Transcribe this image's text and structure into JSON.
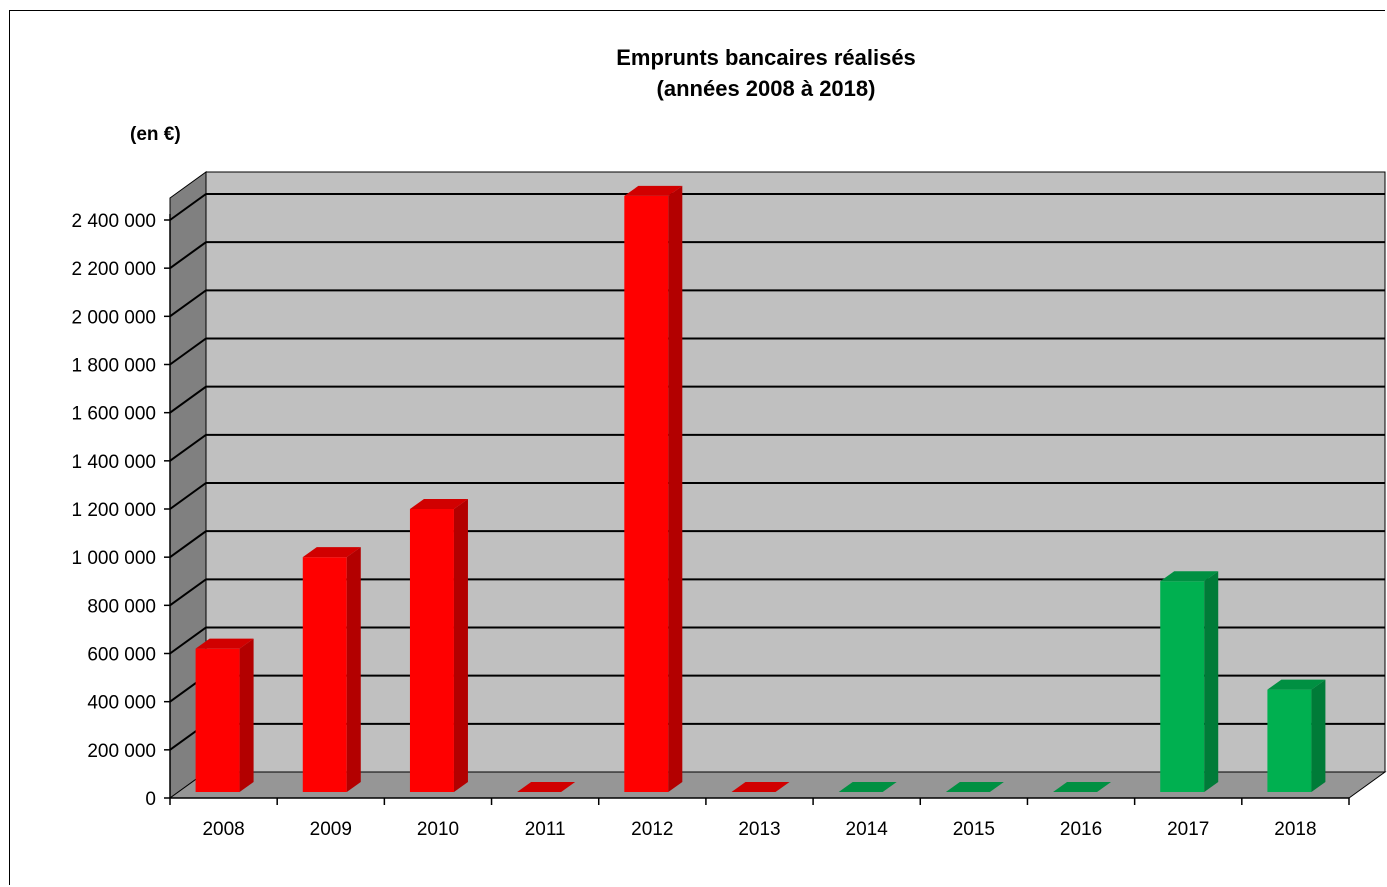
{
  "chart_data": {
    "type": "bar",
    "title": [
      "Emprunts bancaires réalisés",
      "(années 2008 à 2018)"
    ],
    "unit_label": "(en €)",
    "categories": [
      "2008",
      "2009",
      "2010",
      "2011",
      "2012",
      "2013",
      "2014",
      "2015",
      "2016",
      "2017",
      "2018"
    ],
    "values": [
      620000,
      1000000,
      1200000,
      0,
      2500000,
      0,
      0,
      0,
      0,
      900000,
      450000
    ],
    "bar_colors": [
      "#ff0000",
      "#ff0000",
      "#ff0000",
      "#ff0000",
      "#ff0000",
      "#ff0000",
      "#00b050",
      "#00b050",
      "#00b050",
      "#00b050",
      "#00b050"
    ],
    "ylim": [
      0,
      2400000
    ],
    "yticks": [
      0,
      200000,
      400000,
      600000,
      800000,
      1000000,
      1200000,
      1400000,
      1600000,
      1800000,
      2000000,
      2200000,
      2400000
    ],
    "ytick_labels": [
      "0",
      "200 000",
      "400 000",
      "600 000",
      "800 000",
      "1 000 000",
      "1 200 000",
      "1 400 000",
      "1 600 000",
      "1 800 000",
      "2 000 000",
      "2 200 000",
      "2 400 000"
    ],
    "xlabel": "",
    "ylabel": "",
    "grid": true,
    "legend": "none",
    "style": "3d-columns",
    "wall_color": "#c0c0c0",
    "floor_color": "#969696",
    "side_wall_color": "#808080"
  }
}
